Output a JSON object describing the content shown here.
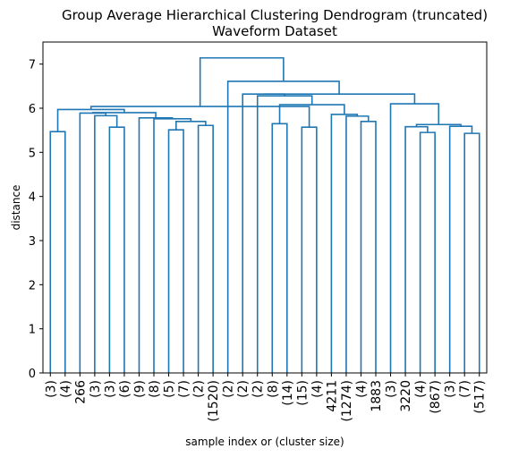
{
  "chart_data": {
    "type": "dendrogram",
    "title": "Group Average Hierarchical Clustering Dendrogram (truncated)",
    "subtitle": "Waveform Dataset",
    "xlabel": "sample index or (cluster size)",
    "ylabel": "distance",
    "ylim": [
      0,
      7.5
    ],
    "yticks": [
      0,
      1,
      2,
      3,
      4,
      5,
      6,
      7
    ],
    "grid": false,
    "link_color": "#1f77b4",
    "leaf_labels": [
      "(3)",
      "(4)",
      "266",
      "(3)",
      "(3)",
      "(6)",
      "(9)",
      "(8)",
      "(5)",
      "(7)",
      "(2)",
      "(1520)",
      "(2)",
      "(2)",
      "(2)",
      "(8)",
      "(14)",
      "(15)",
      "(4)",
      "4211",
      "(1274)",
      "(4)",
      "1883",
      "(3)",
      "3220",
      "(4)",
      "(867)",
      "(3)",
      "(7)",
      "(517)"
    ],
    "merges": [
      {
        "left": 0,
        "right": 1,
        "height": 5.47
      },
      {
        "left": 8,
        "right": 9,
        "height": 5.51
      },
      {
        "left": 4,
        "right": 5,
        "height": 5.57
      },
      {
        "left": 17,
        "right": 18,
        "height": 5.57
      },
      {
        "left": 28,
        "right": 29,
        "height": 5.43
      },
      {
        "left": 25,
        "right": 26,
        "height": 5.45
      },
      {
        "left": 10,
        "right": 11,
        "height": 5.61
      },
      {
        "left": 15,
        "right": 16,
        "height": 5.65
      },
      {
        "left": 21,
        "right": 22,
        "height": 5.7
      },
      {
        "left": 20,
        "right": 38,
        "height": 5.82
      },
      {
        "left": 27,
        "right": 34,
        "height": 5.59
      },
      {
        "left": 24,
        "right": 35,
        "height": 5.58
      },
      {
        "left": 41,
        "right": 40,
        "height": 5.63
      },
      {
        "left": 31,
        "right": 36,
        "height": 5.7
      },
      {
        "left": 7,
        "right": 43,
        "height": 5.76
      },
      {
        "left": 6,
        "right": 44,
        "height": 5.78
      },
      {
        "left": 19,
        "right": 39,
        "height": 5.86
      },
      {
        "left": 3,
        "right": 32,
        "height": 5.83
      },
      {
        "left": 2,
        "right": 47,
        "height": 5.89
      },
      {
        "left": 45,
        "right": 48,
        "height": 5.9
      },
      {
        "left": 30,
        "right": 49,
        "height": 5.97
      },
      {
        "left": 37,
        "right": 46,
        "height": 6.08
      },
      {
        "left": 14,
        "right": 51,
        "height": 6.28
      },
      {
        "left": 13,
        "right": 52,
        "height": 6.32
      },
      {
        "left": 23,
        "right": 42,
        "height": 6.1
      },
      {
        "left": 53,
        "right": 54,
        "height": 6.32
      },
      {
        "left": 12,
        "right": 55,
        "height": 6.61
      },
      {
        "left": 33,
        "right": 50,
        "height": 6.04
      },
      {
        "left": 57,
        "right": 56,
        "height": 7.14
      }
    ]
  }
}
